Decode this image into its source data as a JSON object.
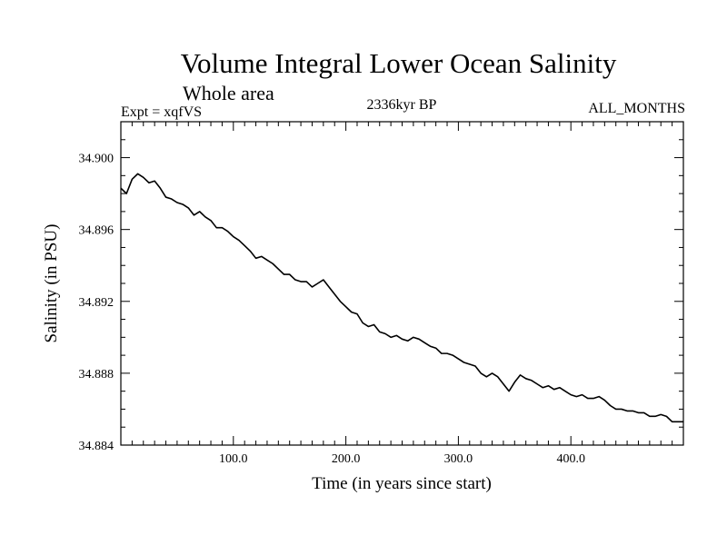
{
  "chart_data": {
    "type": "line",
    "title": "Volume Integral Lower Ocean Salinity",
    "subtitle": "Whole area",
    "experiment_label": "Expt = xqfVS",
    "period_label": "2336kyr BP",
    "months_label": "ALL_MONTHS",
    "xlabel": "Time (in years since start)",
    "ylabel": "Salinity (in PSU)",
    "xlim": [
      0,
      500
    ],
    "ylim": [
      34.884,
      34.902
    ],
    "x_ticks": [
      100,
      200,
      300,
      400
    ],
    "x_tick_labels": [
      "100.0",
      "200.0",
      "300.0",
      "400.0"
    ],
    "y_ticks": [
      34.884,
      34.888,
      34.892,
      34.896,
      34.9
    ],
    "y_tick_labels": [
      "34.884",
      "34.888",
      "34.892",
      "34.896",
      "34.900"
    ],
    "grid": false,
    "series": [
      {
        "name": "Salinity",
        "color": "#000000",
        "x": [
          0,
          5,
          10,
          15,
          20,
          25,
          30,
          35,
          40,
          45,
          50,
          55,
          60,
          65,
          70,
          75,
          80,
          85,
          90,
          95,
          100,
          105,
          110,
          115,
          120,
          125,
          130,
          135,
          140,
          145,
          150,
          155,
          160,
          165,
          170,
          175,
          180,
          185,
          190,
          195,
          200,
          205,
          210,
          215,
          220,
          225,
          230,
          235,
          240,
          245,
          250,
          255,
          260,
          265,
          270,
          275,
          280,
          285,
          290,
          295,
          300,
          305,
          310,
          315,
          320,
          325,
          330,
          335,
          340,
          345,
          350,
          355,
          360,
          365,
          370,
          375,
          380,
          385,
          390,
          395,
          400,
          405,
          410,
          415,
          420,
          425,
          430,
          435,
          440,
          445,
          450,
          455,
          460,
          465,
          470,
          475,
          480,
          485,
          490,
          495,
          500
        ],
        "values": [
          34.8983,
          34.898,
          34.8988,
          34.8991,
          34.8989,
          34.8986,
          34.8987,
          34.8983,
          34.8978,
          34.8977,
          34.8975,
          34.8974,
          34.8972,
          34.8968,
          34.897,
          34.8967,
          34.8965,
          34.8961,
          34.8961,
          34.8959,
          34.8956,
          34.8954,
          34.8951,
          34.8948,
          34.8944,
          34.8945,
          34.8943,
          34.8941,
          34.8938,
          34.8935,
          34.8935,
          34.8932,
          34.8931,
          34.8931,
          34.8928,
          34.893,
          34.8932,
          34.8928,
          34.8924,
          34.892,
          34.8917,
          34.8914,
          34.8913,
          34.8908,
          34.8906,
          34.8907,
          34.8903,
          34.8902,
          34.89,
          34.8901,
          34.8899,
          34.8898,
          34.89,
          34.8899,
          34.8897,
          34.8895,
          34.8894,
          34.8891,
          34.8891,
          34.889,
          34.8888,
          34.8886,
          34.8885,
          34.8884,
          34.888,
          34.8878,
          34.888,
          34.8878,
          34.8874,
          34.887,
          34.8875,
          34.8879,
          34.8877,
          34.8876,
          34.8874,
          34.8872,
          34.8873,
          34.8871,
          34.8872,
          34.887,
          34.8868,
          34.8867,
          34.8868,
          34.8866,
          34.8866,
          34.8867,
          34.8865,
          34.8862,
          34.886,
          34.886,
          34.8859,
          34.8859,
          34.8858,
          34.8858,
          34.8856,
          34.8856,
          34.8857,
          34.8856,
          34.8853,
          34.8853,
          34.8853
        ]
      }
    ]
  }
}
